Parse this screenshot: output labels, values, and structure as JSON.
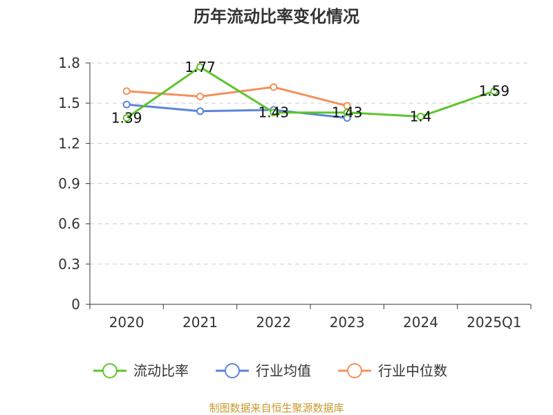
{
  "title": "历年流动比率变化情况",
  "source": "制图数据来自恒生聚源数据库",
  "chart_data": {
    "type": "line",
    "title": "历年流动比率变化情况",
    "categories": [
      "2020",
      "2021",
      "2022",
      "2023",
      "2024",
      "2025Q1"
    ],
    "ylim": [
      0,
      1.8
    ],
    "yticks": [
      "0",
      "0.3",
      "0.6",
      "0.9",
      "1.2",
      "1.5",
      "1.8"
    ],
    "grid": true,
    "legend_position": "bottom",
    "series": [
      {
        "name": "流动比率",
        "color": "#5cc52b",
        "values": [
          1.39,
          1.77,
          1.43,
          1.43,
          1.4,
          1.59
        ],
        "labels": [
          "1.39",
          "1.77",
          "1.43",
          "1.43",
          "1.4",
          "1.59"
        ]
      },
      {
        "name": "行业均值",
        "color": "#5b84d9",
        "values": [
          1.49,
          1.44,
          1.45,
          1.39,
          null,
          null
        ]
      },
      {
        "name": "行业中位数",
        "color": "#f58f5c",
        "values": [
          1.59,
          1.55,
          1.62,
          1.48,
          null,
          null
        ]
      }
    ]
  }
}
